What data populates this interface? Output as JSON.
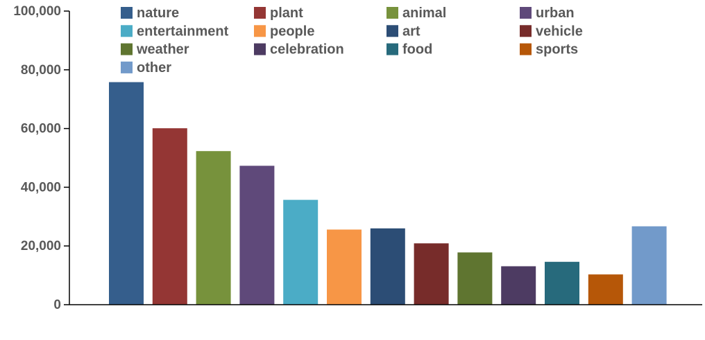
{
  "chart_data": {
    "type": "bar",
    "categories": [
      "nature",
      "plant",
      "animal",
      "urban",
      "entertainment",
      "people",
      "art",
      "vehicle",
      "weather",
      "celebration",
      "food",
      "sports",
      "other"
    ],
    "values": [
      75800,
      60100,
      52300,
      47300,
      35700,
      25600,
      26000,
      20900,
      17800,
      13100,
      14600,
      10300,
      26700
    ],
    "colors": [
      "#355e8c",
      "#943634",
      "#77923c",
      "#5f497a",
      "#4bacc6",
      "#f79646",
      "#2c4d75",
      "#772c2a",
      "#5f7530",
      "#4d3b62",
      "#276a7c",
      "#b65708",
      "#729aca"
    ],
    "ylim": [
      0,
      100000
    ],
    "yticks": [
      0,
      20000,
      40000,
      60000,
      80000,
      100000
    ],
    "ytick_labels": [
      "0",
      "20,000",
      "40,000",
      "60,000",
      "80,000",
      "100,000"
    ],
    "legend": {
      "placement": "top",
      "columns": 4,
      "entries": [
        "nature",
        "plant",
        "animal",
        "urban",
        "entertainment",
        "people",
        "art",
        "vehicle",
        "weather",
        "celebration",
        "food",
        "sports",
        "other"
      ]
    },
    "title": "",
    "xlabel": "",
    "ylabel": "",
    "grid": false
  }
}
